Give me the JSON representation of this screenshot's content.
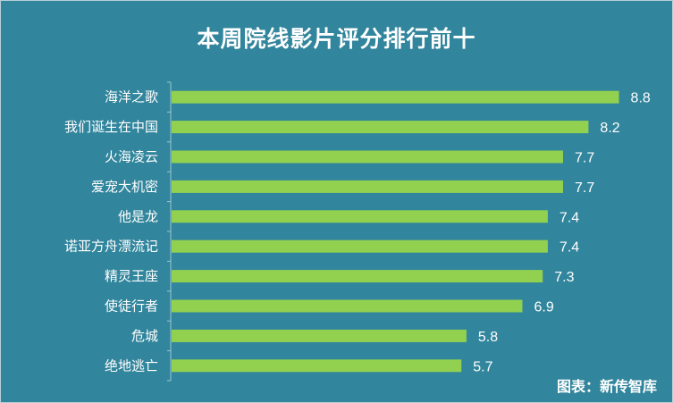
{
  "chart_data": {
    "type": "bar",
    "orientation": "horizontal",
    "title": "本周院线影片评分排行前十",
    "categories": [
      "海洋之歌",
      "我们诞生在中国",
      "火海凌云",
      "爱宠大机密",
      "他是龙",
      "诺亚方舟漂流记",
      "精灵王座",
      "使徒行者",
      "危城",
      "绝地逃亡"
    ],
    "values": [
      8.8,
      8.2,
      7.7,
      7.7,
      7.4,
      7.4,
      7.3,
      6.9,
      5.8,
      5.7
    ],
    "value_labels": [
      "8.8",
      "8.2",
      "7.7",
      "7.7",
      "7.4",
      "7.4",
      "7.3",
      "6.9",
      "5.8",
      "5.7"
    ],
    "xlabel": "",
    "ylabel": "",
    "xlim": [
      0,
      9.3
    ],
    "grid": false,
    "bar_color": "#92d050",
    "background_color": "#31859c"
  },
  "source_label": "图表：新传智库"
}
